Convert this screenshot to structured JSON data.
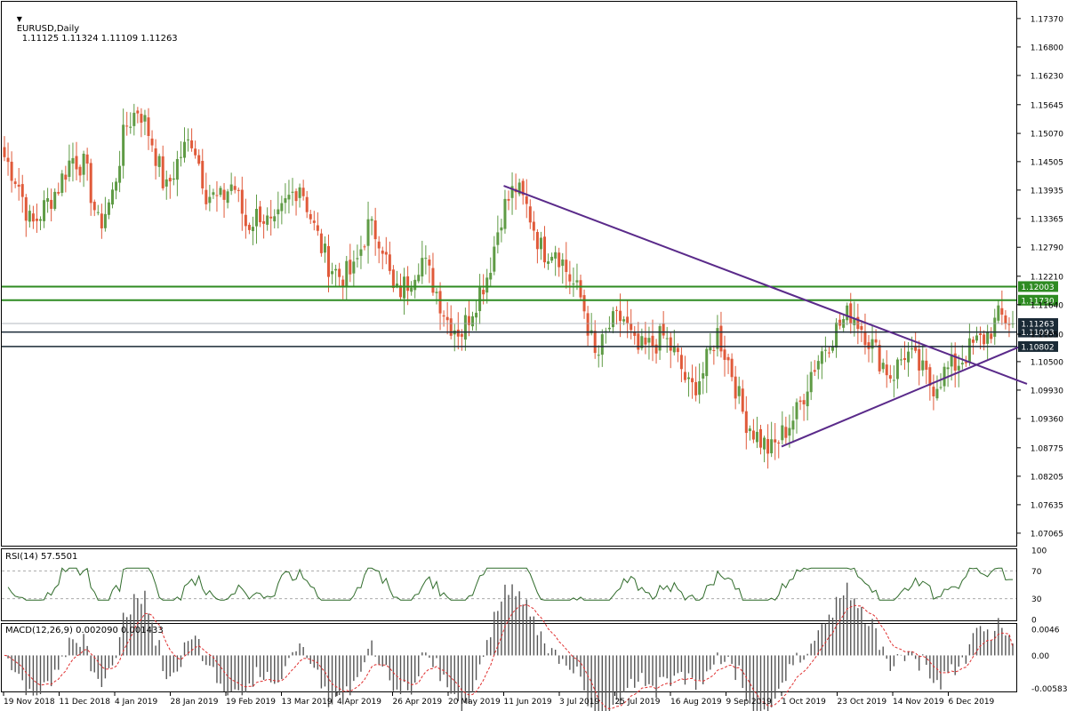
{
  "header": {
    "symbol": "EURUSD,Daily",
    "ohlc": "1.11125 1.11324 1.11109 1.11263"
  },
  "rsi_label": "RSI(14) 57.5501",
  "macd_label": "MACD(12,26,9) 0.002090 0.001433",
  "colors": {
    "bull": "#5f9b45",
    "bear": "#e05a3a",
    "trendline": "#5a2a8a",
    "green_level": "#2e8b22",
    "dark_level": "#1a2a36",
    "rsi_line": "#2f6b2a",
    "macd_hist": "#555555",
    "macd_signal": "#e03030"
  },
  "chart_data": [
    {
      "type": "candlestick",
      "title": "EURUSD,Daily",
      "ylim": [
        1.0685,
        1.1767
      ],
      "y_ticks": [
        "1.17370",
        "1.16800",
        "1.16230",
        "1.15645",
        "1.15070",
        "1.14505",
        "1.13935",
        "1.13365",
        "1.12790",
        "1.12210",
        "1.11640",
        "1.11050",
        "1.10500",
        "1.09930",
        "1.09360",
        "1.08775",
        "1.08205",
        "1.07635",
        "1.07065"
      ],
      "x_ticks": [
        "19 Nov 2018",
        "11 Dec 2018",
        "4 Jan 2019",
        "28 Jan 2019",
        "19 Feb 2019",
        "13 Mar 2019",
        "4 Apr 2019",
        "26 Apr 2019",
        "20 May 2019",
        "11 Jun 2019",
        "3 Jul 2019",
        "25 Jul 2019",
        "16 Aug 2019",
        "9 Sep 2019",
        "1 Oct 2019",
        "23 Oct 2019",
        "14 Nov 2019",
        "6 Dec 2019"
      ],
      "anchors": [
        1.146,
        1.141,
        1.132,
        1.136,
        1.14,
        1.146,
        1.144,
        1.132,
        1.138,
        1.152,
        1.156,
        1.149,
        1.139,
        1.146,
        1.15,
        1.139,
        1.137,
        1.141,
        1.132,
        1.135,
        1.131,
        1.137,
        1.141,
        1.132,
        1.125,
        1.122,
        1.123,
        1.132,
        1.13,
        1.118,
        1.121,
        1.126,
        1.12,
        1.113,
        1.111,
        1.117,
        1.123,
        1.135,
        1.14,
        1.135,
        1.127,
        1.128,
        1.122,
        1.117,
        1.105,
        1.112,
        1.114,
        1.107,
        1.108,
        1.11,
        1.106,
        1.099,
        1.103,
        1.111,
        1.104,
        1.094,
        1.09,
        1.087,
        1.091,
        1.095,
        1.103,
        1.108,
        1.112,
        1.115,
        1.111,
        1.106,
        1.102,
        1.107,
        1.104,
        1.1,
        1.103,
        1.105,
        1.108,
        1.11,
        1.114,
        1.113
      ],
      "levels": [
        {
          "value": 1.12003,
          "label": "1.12003",
          "style": "green"
        },
        {
          "value": 1.1173,
          "label": "1.11730",
          "style": "green"
        },
        {
          "value": 1.11263,
          "label": "1.11263",
          "style": "current"
        },
        {
          "value": 1.11093,
          "label": "1.11093",
          "style": "dark"
        },
        {
          "value": 1.10802,
          "label": "1.10802",
          "style": "dark"
        }
      ],
      "trendlines": [
        {
          "from": {
            "x": "11 Jun 2019",
            "y": 1.1402
          },
          "to": {
            "x": "6 Dec 2019",
            "y": 1.1065
          }
        },
        {
          "from": {
            "x": "1 Oct 2019",
            "y": 1.088
          },
          "to": {
            "x": "6 Dec 2019",
            "y": 1.102
          }
        }
      ]
    },
    {
      "type": "line",
      "title": "RSI(14) 57.5501",
      "ylim": [
        0,
        100
      ],
      "y_ticks": [
        "100",
        "70",
        "30",
        "0"
      ],
      "guide_levels": [
        70,
        30
      ],
      "last_value": 57.5501
    },
    {
      "type": "bar",
      "title": "MACD(12,26,9) 0.002090 0.001433",
      "ylim": [
        -0.0062,
        0.0054
      ],
      "y_ticks": [
        "0.0046",
        "0.00",
        "-0.00583"
      ],
      "main": 0.00209,
      "signal": 0.001433
    }
  ]
}
